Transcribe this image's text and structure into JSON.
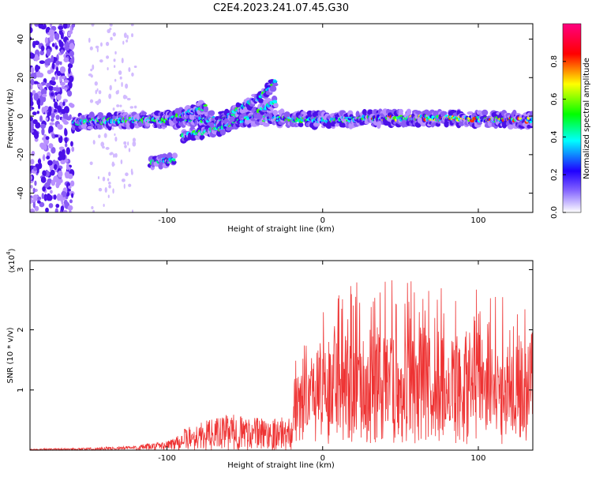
{
  "title": "C2E4.2023.241.07.45.G30",
  "chart_data": [
    {
      "type": "heatmap",
      "xlabel": "Height of straight line (km)",
      "ylabel": "Frequency (Hz)",
      "xlim": [
        -188,
        135
      ],
      "ylim": [
        -50,
        48
      ],
      "x_ticks": [
        -100,
        0,
        100
      ],
      "y_ticks": [
        -40,
        -20,
        0,
        20,
        40
      ],
      "colorbar": {
        "label": "Normalized spectral amplitude",
        "ticks": [
          "0.0",
          "0.2",
          "0.4",
          "0.6",
          "0.8"
        ],
        "colors": [
          "#ffffff",
          "#2000ff",
          "#00ffff",
          "#00ff00",
          "#ffff00",
          "#ff0000",
          "#ff0080"
        ]
      },
      "series": [
        {
          "x": [
            -160,
            -120,
            -80,
            -40,
            0,
            40,
            80,
            120,
            135
          ],
          "y": [
            -3,
            -2,
            -2,
            -1,
            -2,
            -1,
            -1,
            -2,
            -2
          ]
        },
        {
          "x": [
            -100,
            -85,
            -75
          ],
          "y": [
            -2,
            2,
            5
          ]
        },
        {
          "x": [
            -70,
            -55,
            -40,
            -30
          ],
          "y": [
            -5,
            3,
            10,
            18
          ]
        },
        {
          "x": [
            -90,
            -75,
            -60,
            -45,
            -30
          ],
          "y": [
            -10,
            -8,
            -5,
            0,
            8
          ]
        },
        {
          "x": [
            -110,
            -95
          ],
          "y": [
            -24,
            -23
          ]
        }
      ]
    },
    {
      "type": "line",
      "xlabel": "Height of straight line (km)",
      "ylabel": "SNR (10 * v/v)",
      "y_multiplier": "(x10",
      "y_multiplier_exp": "4",
      "xlim": [
        -188,
        135
      ],
      "ylim": [
        0,
        3.15
      ],
      "x_ticks": [
        -100,
        0,
        100
      ],
      "y_ticks": [
        1,
        2,
        3
      ],
      "line_color": "#ee3333",
      "envelope": {
        "x": [
          -188,
          -150,
          -120,
          -100,
          -90,
          -80,
          -60,
          -40,
          -20,
          -18,
          0,
          20,
          40,
          60,
          80,
          100,
          120,
          135
        ],
        "y": [
          0.02,
          0.04,
          0.08,
          0.15,
          0.35,
          0.45,
          0.6,
          0.55,
          0.55,
          1.5,
          2.2,
          2.7,
          2.6,
          2.6,
          2.5,
          2.5,
          2.3,
          2.2
        ]
      }
    }
  ]
}
